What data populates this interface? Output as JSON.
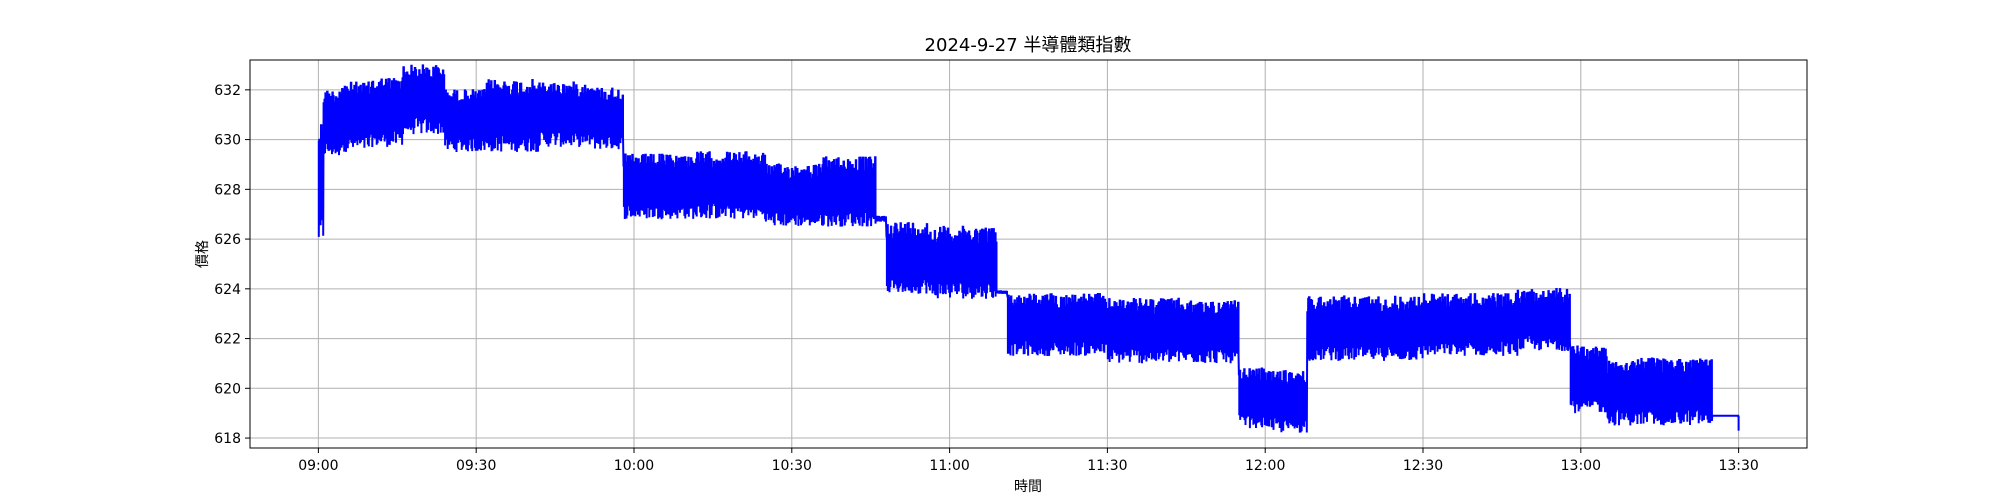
{
  "chart_data": {
    "type": "line",
    "title": "2024-9-27 半導體類指數",
    "xlabel": "時間",
    "ylabel": "價格",
    "grid": true,
    "x_unit": "time of day (HH:MM)",
    "xlim": [
      "08:47",
      "13:43"
    ],
    "ylim": [
      617.6,
      633.2
    ],
    "x_ticks": [
      "09:00",
      "09:30",
      "10:00",
      "10:30",
      "11:00",
      "11:30",
      "12:00",
      "12:30",
      "13:00",
      "13:30"
    ],
    "y_ticks": [
      618,
      620,
      622,
      624,
      626,
      628,
      630,
      632
    ],
    "series": [
      {
        "color": "#0000ff",
        "description": "price oscillates rapidly between a lower and upper band in each segment",
        "segments": [
          {
            "start": "09:00",
            "end": "09:01",
            "low": 625.7,
            "high": 630.8
          },
          {
            "start": "09:01",
            "end": "09:04",
            "low": 629.3,
            "high": 632.0
          },
          {
            "start": "09:04",
            "end": "09:10",
            "low": 629.5,
            "high": 632.3
          },
          {
            "start": "09:10",
            "end": "09:16",
            "low": 629.7,
            "high": 632.5
          },
          {
            "start": "09:16",
            "end": "09:24",
            "low": 630.2,
            "high": 633.0
          },
          {
            "start": "09:24",
            "end": "09:32",
            "low": 629.5,
            "high": 632.0
          },
          {
            "start": "09:32",
            "end": "09:42",
            "low": 629.5,
            "high": 632.4
          },
          {
            "start": "09:42",
            "end": "09:52",
            "low": 629.7,
            "high": 632.3
          },
          {
            "start": "09:52",
            "end": "09:58",
            "low": 629.6,
            "high": 632.1
          },
          {
            "start": "09:58",
            "end": "10:12",
            "low": 626.8,
            "high": 629.4
          },
          {
            "start": "10:12",
            "end": "10:25",
            "low": 626.8,
            "high": 629.5
          },
          {
            "start": "10:25",
            "end": "10:36",
            "low": 626.5,
            "high": 629.0
          },
          {
            "start": "10:36",
            "end": "10:46",
            "low": 626.5,
            "high": 629.3
          },
          {
            "start": "10:46",
            "end": "10:48",
            "low": 626.7,
            "high": 626.9
          },
          {
            "start": "10:48",
            "end": "10:56",
            "low": 623.8,
            "high": 626.7
          },
          {
            "start": "10:56",
            "end": "11:09",
            "low": 623.6,
            "high": 626.5
          },
          {
            "start": "11:09",
            "end": "11:11",
            "low": 623.8,
            "high": 623.9
          },
          {
            "start": "11:11",
            "end": "11:30",
            "low": 621.3,
            "high": 623.8
          },
          {
            "start": "11:30",
            "end": "11:45",
            "low": 621.0,
            "high": 623.6
          },
          {
            "start": "11:45",
            "end": "11:55",
            "low": 621.0,
            "high": 623.5
          },
          {
            "start": "11:55",
            "end": "12:01",
            "low": 618.4,
            "high": 620.8
          },
          {
            "start": "12:01",
            "end": "12:08",
            "low": 618.2,
            "high": 620.7
          },
          {
            "start": "12:08",
            "end": "12:30",
            "low": 621.1,
            "high": 623.7
          },
          {
            "start": "12:30",
            "end": "12:48",
            "low": 621.3,
            "high": 623.8
          },
          {
            "start": "12:48",
            "end": "12:58",
            "low": 621.5,
            "high": 624.0
          },
          {
            "start": "12:58",
            "end": "13:05",
            "low": 619.0,
            "high": 621.7
          },
          {
            "start": "13:05",
            "end": "13:15",
            "low": 618.5,
            "high": 621.2
          },
          {
            "start": "13:15",
            "end": "13:25",
            "low": 618.5,
            "high": 621.2
          },
          {
            "start": "13:25",
            "end": "13:30",
            "low": 618.9,
            "high": 618.9
          },
          {
            "start": "13:30",
            "end": "13:30",
            "low": 618.3,
            "high": 618.9
          }
        ]
      }
    ]
  }
}
